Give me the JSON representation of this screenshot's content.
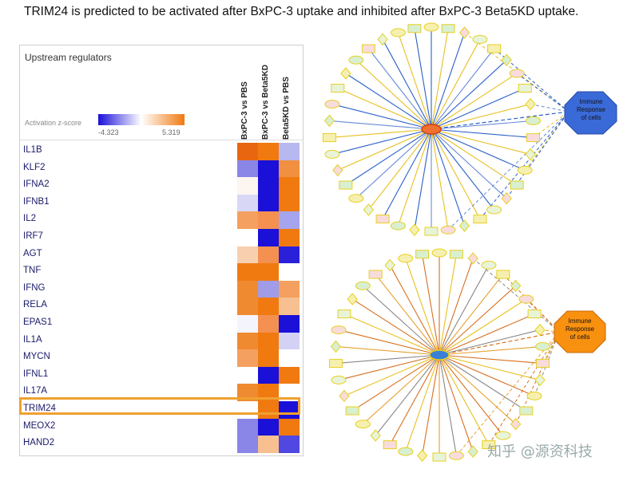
{
  "title": "TRIM24 is predicted to be activated after BxPC-3 uptake and inhibited after BxPC-3 Beta5KD uptake.",
  "heatmap": {
    "panel_title": "Upstream regulators",
    "legend_label": "Activation z-score",
    "zmin": "-4.323",
    "zmax": "5.319",
    "columns": [
      "BxPC-3 vs PBS",
      "BxPC-3 vs Beta5KD",
      "Beta5KD vs PBS"
    ],
    "rows": [
      {
        "name": "IL1B",
        "colors": [
          "#e8660f",
          "#f07a10",
          "#b8b8f0"
        ]
      },
      {
        "name": "KLF2",
        "colors": [
          "#8a86e8",
          "#1a10d8",
          "#f09040"
        ]
      },
      {
        "name": "IFNA2",
        "colors": [
          "#fdf5ef",
          "#1a10d8",
          "#f07a10"
        ]
      },
      {
        "name": "IFNB1",
        "colors": [
          "#d8d8f6",
          "#1a10d8",
          "#f07a10"
        ]
      },
      {
        "name": "IL2",
        "colors": [
          "#f4a060",
          "#f49050",
          "#a6a4ee"
        ]
      },
      {
        "name": "IRF7",
        "colors": [
          "#ffffff",
          "#1a10d8",
          "#f07a10"
        ]
      },
      {
        "name": "AGT",
        "colors": [
          "#f8d0b0",
          "#f49050",
          "#2a20da"
        ]
      },
      {
        "name": "TNF",
        "colors": [
          "#f07a10",
          "#f07a10",
          "#ffffff"
        ]
      },
      {
        "name": "IFNG",
        "colors": [
          "#f08a30",
          "#a09ce8",
          "#f4a060"
        ]
      },
      {
        "name": "RELA",
        "colors": [
          "#f08a30",
          "#f07a10",
          "#f8c090"
        ]
      },
      {
        "name": "EPAS1",
        "colors": [
          "#f4f4fc",
          "#f49050",
          "#1a10d8"
        ]
      },
      {
        "name": "IL1A",
        "colors": [
          "#f08a30",
          "#f07a10",
          "#d4d2f4"
        ]
      },
      {
        "name": "MYCN",
        "colors": [
          "#f4a060",
          "#f07a10",
          "#ffffff"
        ]
      },
      {
        "name": "IFNL1",
        "colors": [
          "#ffffff",
          "#1a10d8",
          "#f07a10"
        ]
      },
      {
        "name": "IL17A",
        "colors": [
          "#f08a30",
          "#f07a10",
          "#ffffff"
        ]
      },
      {
        "name": "TRIM24",
        "colors": [
          "#ffffff",
          "#f07a10",
          "#1a10d8"
        ]
      },
      {
        "name": "MEOX2",
        "colors": [
          "#8a86e8",
          "#1a10d8",
          "#f07a10"
        ]
      },
      {
        "name": "HAND2",
        "colors": [
          "#8a86e8",
          "#f8c090",
          "#5048e0"
        ]
      }
    ],
    "highlighted_row": "TRIM24"
  },
  "networks": {
    "target_label_line1": "Immune",
    "target_label_line2": "Response",
    "target_label_line3": "of cells",
    "top_target_color": "#3a6ad8",
    "bottom_target_color": "#f89010"
  },
  "watermark": "知乎 @源资科技"
}
